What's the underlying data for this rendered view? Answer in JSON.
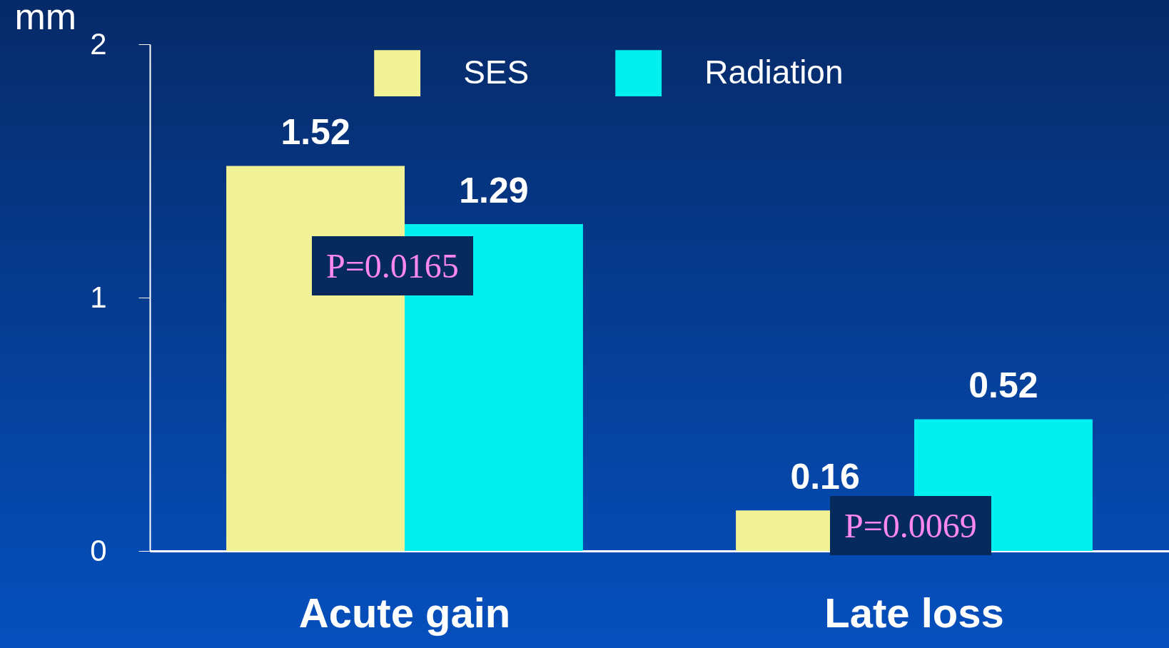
{
  "chart_data": {
    "type": "bar",
    "ylabel": "mm",
    "categories": [
      "Acute gain",
      "Late loss"
    ],
    "series": [
      {
        "name": "SES",
        "color": "#f2f296",
        "values": [
          1.52,
          0.16
        ]
      },
      {
        "name": "Radiation",
        "color": "#00f0f0",
        "values": [
          1.29,
          0.52
        ]
      }
    ],
    "ylim": [
      0,
      2
    ],
    "yticks": [
      0,
      1,
      2
    ],
    "grid": false,
    "legend": "top",
    "data_labels": true,
    "annotations": [
      "P=0.0165",
      "P=0.0069"
    ]
  }
}
